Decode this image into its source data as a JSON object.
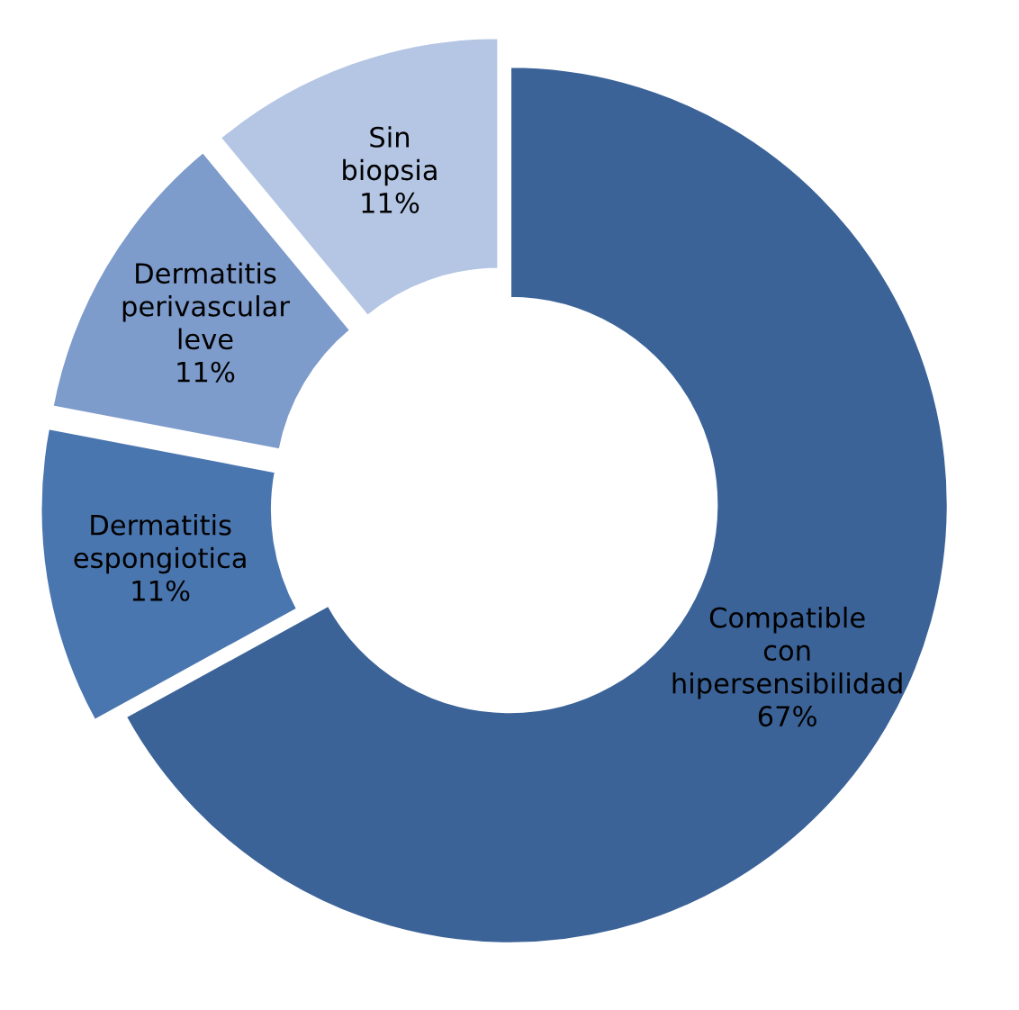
{
  "chart_data": {
    "type": "donut",
    "categories": [
      "Compatible con hipersensibilidad",
      "Dermatitis espongiotica",
      "Dermatitis perivascular leve",
      "Sin biopsia"
    ],
    "values": [
      67,
      11,
      11,
      11
    ],
    "colors": [
      "#3b6398",
      "#4a76b0",
      "#7d9bcb",
      "#b4c6e4"
    ],
    "value_labels": [
      "67%",
      "11%",
      "11%",
      "11%"
    ],
    "legend": false
  }
}
